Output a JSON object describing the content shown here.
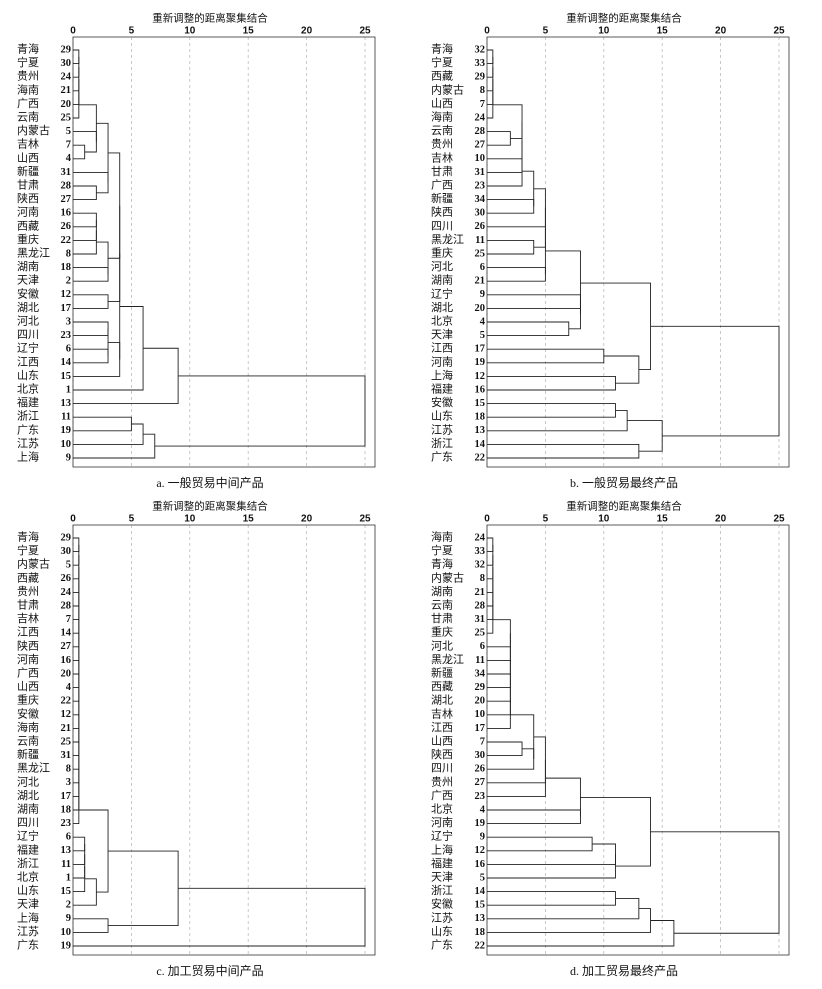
{
  "chart_data": [
    {
      "type": "dendrogram",
      "xlabel": "重新调整的距离聚集结合",
      "title": "a. 一般贸易中间产品",
      "xlim": [
        0,
        25
      ],
      "xticks": [
        0,
        5,
        10,
        15,
        20,
        25
      ],
      "labels": [
        "青海",
        "宁夏",
        "贵州",
        "海南",
        "广西",
        "云南",
        "内蒙古",
        "吉林",
        "山西",
        "新疆",
        "甘肃",
        "陕西",
        "河南",
        "西藏",
        "重庆",
        "黑龙江",
        "湖南",
        "天津",
        "安徽",
        "湖北",
        "河北",
        "四川",
        "辽宁",
        "江西",
        "山东",
        "北京",
        "福建",
        "浙江",
        "广东",
        "江苏",
        "上海"
      ],
      "ids": [
        29,
        30,
        24,
        21,
        20,
        25,
        5,
        7,
        4,
        31,
        28,
        27,
        16,
        26,
        22,
        8,
        18,
        2,
        12,
        17,
        3,
        23,
        6,
        14,
        15,
        1,
        13,
        11,
        19,
        10,
        9
      ],
      "merges": [
        [
          0,
          1,
          0.5
        ],
        [
          31,
          2,
          0.5
        ],
        [
          32,
          3,
          0.5
        ],
        [
          33,
          4,
          0.5
        ],
        [
          34,
          5,
          0.5
        ],
        [
          7,
          8,
          1
        ],
        [
          6,
          36,
          2
        ],
        [
          35,
          37,
          2
        ],
        [
          10,
          11,
          2
        ],
        [
          9,
          39,
          3
        ],
        [
          12,
          13,
          2
        ],
        [
          41,
          14,
          2
        ],
        [
          42,
          15,
          2
        ],
        [
          16,
          17,
          3
        ],
        [
          18,
          19,
          3
        ],
        [
          43,
          44,
          3
        ],
        [
          38,
          40,
          3
        ],
        [
          47,
          46,
          4
        ],
        [
          20,
          21,
          3
        ],
        [
          22,
          23,
          3
        ],
        [
          49,
          50,
          3
        ],
        [
          51,
          24,
          4
        ],
        [
          48,
          45,
          4
        ],
        [
          53,
          52,
          4
        ],
        [
          54,
          25,
          6
        ],
        [
          55,
          26,
          9
        ],
        [
          27,
          28,
          5
        ],
        [
          57,
          29,
          6
        ],
        [
          58,
          30,
          7
        ],
        [
          56,
          59,
          25
        ]
      ]
    },
    {
      "type": "dendrogram",
      "xlabel": "重新调整的距离聚集结合",
      "title": "b. 一般贸易最终产品",
      "xlim": [
        0,
        25
      ],
      "xticks": [
        0,
        5,
        10,
        15,
        20,
        25
      ],
      "labels": [
        "青海",
        "宁夏",
        "西藏",
        "内蒙古",
        "山西",
        "海南",
        "云南",
        "贵州",
        "吉林",
        "甘肃",
        "广西",
        "新疆",
        "陕西",
        "四川",
        "黑龙江",
        "重庆",
        "河北",
        "湖南",
        "辽宁",
        "湖北",
        "北京",
        "天津",
        "江西",
        "河南",
        "上海",
        "福建",
        "安徽",
        "山东",
        "江苏",
        "浙江",
        "广东"
      ],
      "ids": [
        32,
        33,
        29,
        8,
        7,
        24,
        28,
        27,
        10,
        31,
        23,
        34,
        30,
        26,
        11,
        25,
        6,
        21,
        9,
        20,
        4,
        5,
        17,
        19,
        12,
        16,
        15,
        18,
        13,
        14,
        22
      ],
      "merges": [
        [
          0,
          1,
          0.5
        ],
        [
          31,
          2,
          0.5
        ],
        [
          32,
          3,
          0.5
        ],
        [
          33,
          4,
          0.5
        ],
        [
          34,
          5,
          0.5
        ],
        [
          6,
          7,
          2
        ],
        [
          35,
          36,
          3
        ],
        [
          37,
          8,
          3
        ],
        [
          38,
          9,
          3
        ],
        [
          39,
          10,
          3
        ],
        [
          11,
          12,
          4
        ],
        [
          40,
          41,
          4
        ],
        [
          42,
          13,
          5
        ],
        [
          14,
          15,
          4
        ],
        [
          43,
          44,
          5
        ],
        [
          16,
          17,
          5
        ],
        [
          45,
          46,
          5
        ],
        [
          18,
          19,
          8
        ],
        [
          20,
          21,
          7
        ],
        [
          48,
          49,
          8
        ],
        [
          47,
          50,
          8
        ],
        [
          22,
          23,
          10
        ],
        [
          24,
          25,
          11
        ],
        [
          52,
          53,
          13
        ],
        [
          51,
          54,
          14
        ],
        [
          26,
          27,
          11
        ],
        [
          56,
          28,
          12
        ],
        [
          29,
          30,
          13
        ],
        [
          57,
          58,
          15
        ],
        [
          55,
          59,
          25
        ]
      ]
    },
    {
      "type": "dendrogram",
      "xlabel": "重新调整的距离聚集结合",
      "title": "c. 加工贸易中间产品",
      "xlim": [
        0,
        25
      ],
      "xticks": [
        0,
        5,
        10,
        15,
        20,
        25
      ],
      "labels": [
        "青海",
        "宁夏",
        "内蒙古",
        "西藏",
        "贵州",
        "甘肃",
        "吉林",
        "江西",
        "陕西",
        "河南",
        "广西",
        "山西",
        "重庆",
        "安徽",
        "海南",
        "云南",
        "新疆",
        "黑龙江",
        "河北",
        "湖北",
        "湖南",
        "四川",
        "辽宁",
        "福建",
        "浙江",
        "北京",
        "山东",
        "天津",
        "上海",
        "江苏",
        "广东"
      ],
      "ids": [
        29,
        30,
        5,
        26,
        24,
        28,
        7,
        14,
        27,
        16,
        20,
        4,
        22,
        12,
        21,
        25,
        31,
        8,
        3,
        17,
        18,
        23,
        6,
        13,
        11,
        1,
        15,
        2,
        9,
        10,
        19
      ],
      "merges": [
        [
          0,
          1,
          0.5
        ],
        [
          31,
          2,
          0.5
        ],
        [
          32,
          3,
          0.5
        ],
        [
          33,
          4,
          0.5
        ],
        [
          34,
          5,
          0.5
        ],
        [
          35,
          6,
          0.5
        ],
        [
          36,
          7,
          0.5
        ],
        [
          37,
          8,
          0.5
        ],
        [
          38,
          9,
          0.5
        ],
        [
          39,
          10,
          0.5
        ],
        [
          40,
          11,
          0.5
        ],
        [
          41,
          12,
          0.5
        ],
        [
          42,
          13,
          0.5
        ],
        [
          43,
          14,
          0.5
        ],
        [
          44,
          15,
          0.5
        ],
        [
          45,
          16,
          0.5
        ],
        [
          46,
          17,
          0.5
        ],
        [
          47,
          18,
          0.5
        ],
        [
          48,
          19,
          0.5
        ],
        [
          49,
          20,
          0.5
        ],
        [
          50,
          21,
          0.5
        ],
        [
          22,
          23,
          1
        ],
        [
          52,
          24,
          1
        ],
        [
          53,
          25,
          1
        ],
        [
          54,
          26,
          1
        ],
        [
          55,
          27,
          2
        ],
        [
          51,
          56,
          3
        ],
        [
          28,
          29,
          3
        ],
        [
          57,
          58,
          9
        ],
        [
          59,
          30,
          25
        ]
      ]
    },
    {
      "type": "dendrogram",
      "xlabel": "重新调整的距离聚集结合",
      "title": "d. 加工贸易最终产品",
      "xlim": [
        0,
        25
      ],
      "xticks": [
        0,
        5,
        10,
        15,
        20,
        25
      ],
      "labels": [
        "海南",
        "宁夏",
        "青海",
        "内蒙古",
        "湖南",
        "云南",
        "甘肃",
        "重庆",
        "河北",
        "黑龙江",
        "新疆",
        "西藏",
        "湖北",
        "吉林",
        "江西",
        "山西",
        "陕西",
        "四川",
        "贵州",
        "广西",
        "北京",
        "河南",
        "辽宁",
        "上海",
        "福建",
        "天津",
        "浙江",
        "安徽",
        "江苏",
        "山东",
        "广东"
      ],
      "ids": [
        24,
        33,
        32,
        8,
        21,
        28,
        31,
        25,
        6,
        11,
        34,
        29,
        20,
        10,
        17,
        7,
        30,
        26,
        27,
        23,
        4,
        19,
        9,
        12,
        16,
        5,
        14,
        15,
        13,
        18,
        22
      ],
      "merges": [
        [
          0,
          1,
          0.5
        ],
        [
          31,
          2,
          0.5
        ],
        [
          32,
          3,
          0.5
        ],
        [
          33,
          4,
          0.5
        ],
        [
          34,
          5,
          0.5
        ],
        [
          35,
          6,
          0.5
        ],
        [
          36,
          7,
          0.5
        ],
        [
          37,
          8,
          2
        ],
        [
          38,
          9,
          2
        ],
        [
          39,
          10,
          2
        ],
        [
          40,
          11,
          2
        ],
        [
          41,
          12,
          2
        ],
        [
          42,
          13,
          2
        ],
        [
          43,
          14,
          2
        ],
        [
          15,
          16,
          3
        ],
        [
          45,
          17,
          4
        ],
        [
          44,
          46,
          4
        ],
        [
          47,
          18,
          5
        ],
        [
          48,
          19,
          5
        ],
        [
          20,
          21,
          8
        ],
        [
          49,
          50,
          8
        ],
        [
          22,
          23,
          9
        ],
        [
          52,
          24,
          11
        ],
        [
          53,
          25,
          11
        ],
        [
          51,
          54,
          14
        ],
        [
          26,
          27,
          11
        ],
        [
          56,
          28,
          13
        ],
        [
          57,
          29,
          14
        ],
        [
          58,
          30,
          16
        ],
        [
          55,
          59,
          25
        ]
      ]
    }
  ]
}
